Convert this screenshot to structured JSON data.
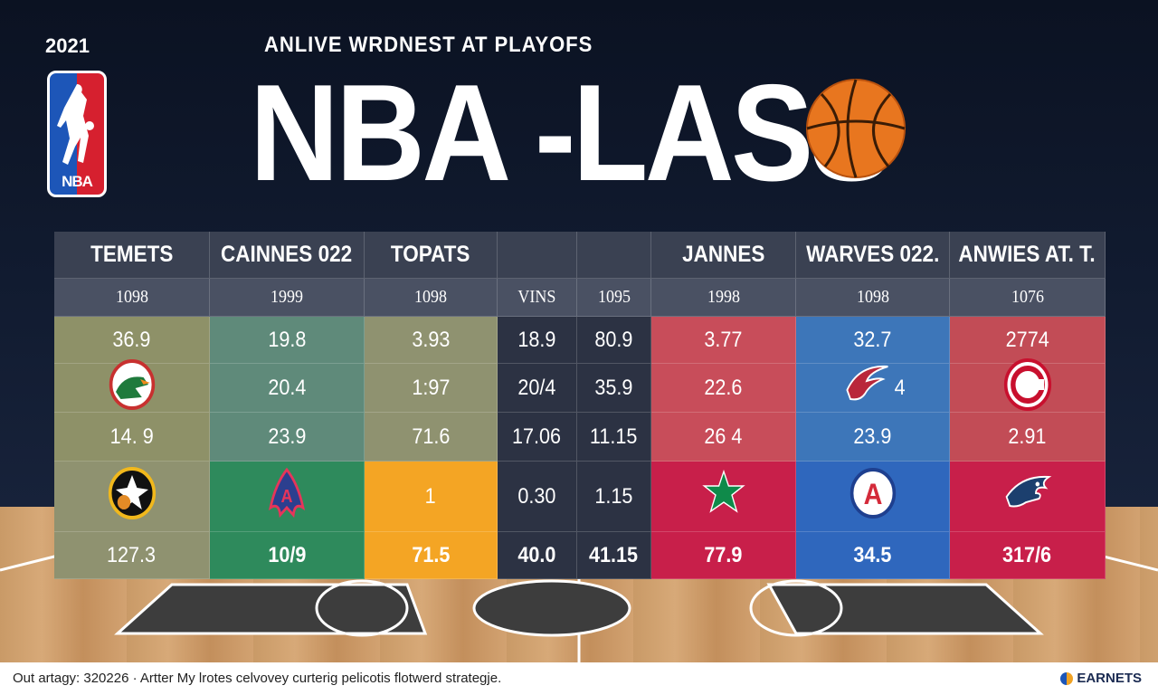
{
  "header": {
    "year": "2021",
    "subtitle": "ANLIVE WRDNEST AT PLAYOFS",
    "title": "NBA -LASS",
    "logo_text": "NBA"
  },
  "colors": {
    "olive": "#8e9168",
    "teal": "#5f8a7a",
    "khaki": "#8f9270",
    "dark": "#2c3243",
    "red": "#c84d5a",
    "blue": "#3d76b9",
    "rose": "#c24c56",
    "green": "#2e8a5c",
    "gold": "#f4a524",
    "crimson": "#c81f4a",
    "royal": "#2f67bd"
  },
  "table": {
    "headers": [
      "TEMETS",
      "CAINNES 022",
      "TOPATS",
      "",
      "",
      "JANNES",
      "WARVES 022.",
      "ANWIES AT. T."
    ],
    "subheaders": [
      "1098",
      "1999",
      "1098",
      "VINS",
      "1095",
      "1998",
      "1098",
      "1076"
    ],
    "rows": [
      [
        "36.9",
        "19.8",
        "3.93",
        "18.9",
        "80.9",
        "3.77",
        "32.7",
        "2774"
      ],
      [
        "",
        "20.4",
        "1:97",
        "20/4",
        "35.9",
        "22.6",
        "4",
        ""
      ],
      [
        "14. 9",
        "23.9",
        "71.6",
        "17.06",
        "11.15",
        "26 4",
        "23.9",
        "2.91"
      ],
      [
        "",
        "",
        "1",
        "0.30",
        "1.15",
        "",
        "",
        ""
      ],
      [
        "127.3",
        "10/9",
        "71.5",
        "40.0",
        "41.15",
        "77.9",
        "34.5",
        "317/6"
      ]
    ],
    "emblems": {
      "r1c0": "gator-logo-icon",
      "r1c6": "bird-swoosh-icon",
      "r1c7": "c-ring-logo-icon",
      "r3c0": "spurs-star-logo-icon",
      "r3c1": "flame-a-logo-icon",
      "r3c5": "green-star-icon",
      "r3c6": "a-circle-logo-icon",
      "r3c7": "eagle-head-icon"
    }
  },
  "footer": {
    "caption": "Out artagy: 320226 · Artter My lrotes celvovey curterig pelicotis flotwerd strategje.",
    "brand": "EARNETS"
  }
}
